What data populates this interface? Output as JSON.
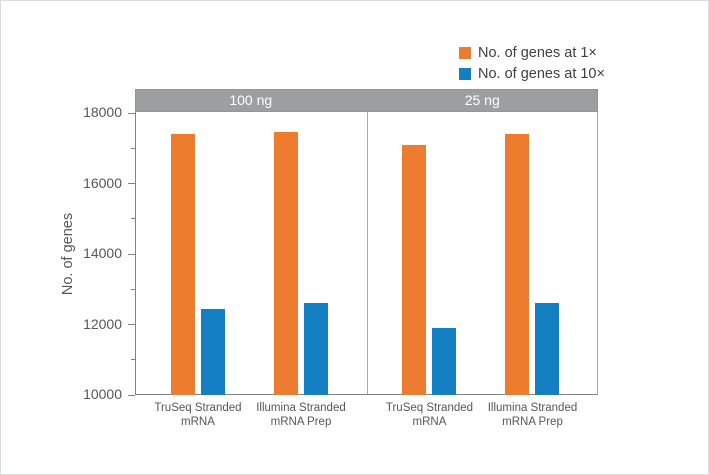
{
  "figure": {
    "background": "#ffffff",
    "border_color": "#dcdddf"
  },
  "legend": {
    "position": "top-right",
    "items": [
      {
        "label": "No. of genes at 1×",
        "color": "#ee7c2f"
      },
      {
        "label": "No. of genes at 10×",
        "color": "#1380c4"
      }
    ]
  },
  "chart_data": {
    "type": "bar",
    "title": "",
    "ylabel": "No. of genes",
    "ylim": [
      10000,
      18000
    ],
    "yticks": [
      "18000",
      "16000",
      "14000",
      "12000",
      "10000"
    ],
    "ytick_values": [
      18000,
      16000,
      14000,
      12000,
      10000
    ],
    "ytick_minor_values": [
      17000,
      15000,
      13000,
      11000
    ],
    "grid": false,
    "legend_position": "top-right",
    "panels": [
      {
        "title": "100 ng",
        "categories": [
          [
            "TruSeq Stranded",
            "mRNA"
          ],
          [
            "Illumina Stranded",
            "mRNA Prep"
          ]
        ],
        "series": [
          {
            "name": "No. of genes at 1×",
            "color": "#ee7c2f",
            "values": [
              17400,
              17450
            ]
          },
          {
            "name": "No. of genes at 10×",
            "color": "#1380c4",
            "values": [
              12450,
              12600
            ]
          }
        ]
      },
      {
        "title": "25 ng",
        "categories": [
          [
            "TruSeq Stranded",
            "mRNA"
          ],
          [
            "Illumina Stranded",
            "mRNA Prep"
          ]
        ],
        "series": [
          {
            "name": "No. of genes at 1×",
            "color": "#ee7c2f",
            "values": [
              17100,
              17400
            ]
          },
          {
            "name": "No. of genes at 10×",
            "color": "#1380c4",
            "values": [
              11900,
              12600
            ]
          }
        ]
      }
    ],
    "styles": {
      "header_bg": "#9c9ea0",
      "header_text_color": "#ffffff",
      "axis_color": "#808285",
      "divider_color": "#a7a9ac",
      "tick_label_color": "#55575a",
      "legend_text_color": "#414042",
      "bar_color_1x": "#ee7c2f",
      "bar_color_10x": "#1380c4"
    }
  }
}
